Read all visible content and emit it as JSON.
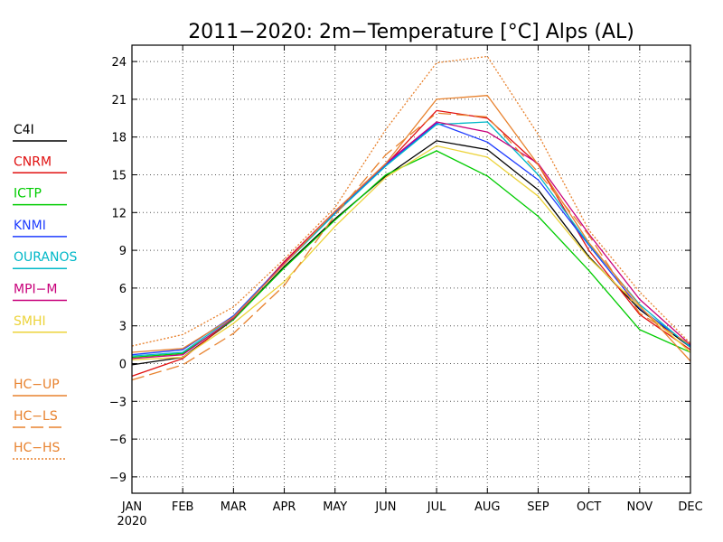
{
  "chart_data": {
    "type": "line",
    "title": "2011−2020: 2m−Temperature [°C] Alps (AL)",
    "xlabel": "",
    "ylabel": "",
    "x": [
      "JAN",
      "FEB",
      "MAR",
      "APR",
      "MAY",
      "JUN",
      "JUL",
      "AUG",
      "SEP",
      "OCT",
      "NOV",
      "DEC"
    ],
    "x_year_label": "2020",
    "ylim": [
      -10.3,
      25.3
    ],
    "yticks": [
      24,
      21,
      18,
      15,
      12,
      9,
      6,
      3,
      0,
      -3,
      -6,
      -9
    ],
    "ytick_labels": [
      "24",
      "21",
      "18",
      "15",
      "12",
      "9",
      "6",
      "3",
      "0",
      "−3",
      "−6",
      "−9"
    ],
    "grid": true,
    "legend_placement": "left",
    "series": [
      {
        "name": "C4I",
        "color": "#000000",
        "dash": "solid",
        "values": [
          -0.1,
          0.5,
          3.5,
          7.7,
          11.5,
          14.9,
          17.7,
          17.0,
          13.8,
          8.5,
          4.3,
          1.3
        ]
      },
      {
        "name": "CNRM",
        "color": "#e01010",
        "dash": "solid",
        "values": [
          -1.0,
          0.4,
          3.6,
          8.1,
          12.1,
          15.8,
          20.1,
          19.5,
          15.8,
          9.0,
          3.9,
          1.1
        ]
      },
      {
        "name": "ICTP",
        "color": "#00cc00",
        "dash": "solid",
        "values": [
          0.5,
          0.8,
          3.5,
          7.6,
          11.4,
          15.0,
          16.9,
          14.9,
          11.7,
          7.4,
          2.7,
          0.9
        ]
      },
      {
        "name": "KNMI",
        "color": "#1e3cff",
        "dash": "solid",
        "values": [
          0.7,
          1.1,
          3.8,
          8.0,
          12.0,
          15.8,
          19.1,
          17.6,
          14.6,
          9.4,
          4.4,
          1.4
        ]
      },
      {
        "name": "OURANOS",
        "color": "#00b8c8",
        "dash": "solid",
        "values": [
          0.6,
          0.9,
          3.7,
          7.9,
          11.9,
          15.7,
          19.0,
          19.2,
          15.0,
          9.5,
          4.7,
          1.3
        ]
      },
      {
        "name": "MPI−M",
        "color": "#c8007a",
        "dash": "solid",
        "values": [
          0.4,
          0.7,
          3.6,
          8.0,
          12.1,
          15.9,
          19.2,
          18.4,
          15.9,
          10.3,
          5.1,
          1.5
        ]
      },
      {
        "name": "SMHI",
        "color": "#ecd33a",
        "dash": "solid",
        "values": [
          0.3,
          0.5,
          3.2,
          6.5,
          10.9,
          14.8,
          17.3,
          16.4,
          13.3,
          8.4,
          4.5,
          0.9
        ]
      },
      {
        "name": "HC−UP",
        "color": "#e8822e",
        "dash": "solid",
        "values": [
          0.9,
          1.2,
          3.7,
          7.9,
          12.1,
          15.9,
          21.0,
          21.3,
          15.8,
          9.6,
          4.6,
          0.2
        ]
      },
      {
        "name": "HC−LS",
        "color": "#e8822e",
        "dash": "long",
        "values": [
          -1.3,
          -0.1,
          2.4,
          6.2,
          11.8,
          16.6,
          19.9,
          19.6,
          15.2,
          10.2,
          4.0,
          1.5
        ]
      },
      {
        "name": "HC−HS",
        "color": "#e8822e",
        "dash": "dotted",
        "values": [
          1.4,
          2.3,
          4.5,
          8.3,
          12.4,
          18.6,
          23.9,
          24.4,
          18.2,
          10.6,
          5.7,
          1.6
        ]
      }
    ]
  }
}
